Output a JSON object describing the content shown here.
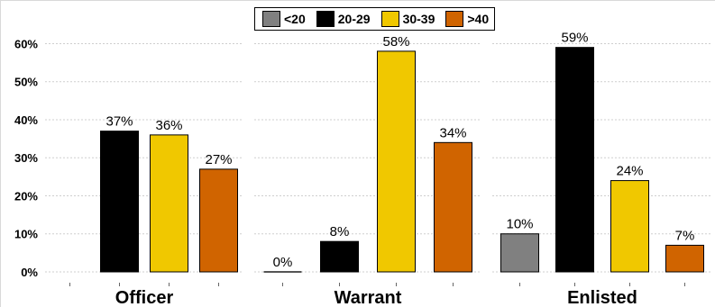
{
  "chart_data": {
    "type": "bar",
    "panels": [
      "Officer",
      "Warrant",
      "Enlisted"
    ],
    "series": [
      {
        "name": "<20",
        "color": "#808080",
        "values": [
          null,
          0,
          10
        ],
        "labels": [
          "",
          "0%",
          "10%"
        ]
      },
      {
        "name": "20-29",
        "color": "#000000",
        "values": [
          37,
          8,
          59
        ],
        "labels": [
          "37%",
          "8%",
          "59%"
        ]
      },
      {
        "name": "30-39",
        "color": "#f0c800",
        "values": [
          36,
          58,
          24
        ],
        "labels": [
          "36%",
          "58%",
          "24%"
        ]
      },
      {
        "name": ">40",
        "color": "#d06400",
        "values": [
          27,
          34,
          7
        ],
        "labels": [
          "27%",
          "34%",
          "7%"
        ]
      }
    ],
    "y_ticks": [
      "0%",
      "10%",
      "20%",
      "30%",
      "40%",
      "50%",
      "60%"
    ],
    "y_tick_values": [
      0,
      10,
      20,
      30,
      40,
      50,
      60
    ],
    "ylim": [
      0,
      62
    ],
    "grid": true,
    "legend_position": "top-center"
  }
}
